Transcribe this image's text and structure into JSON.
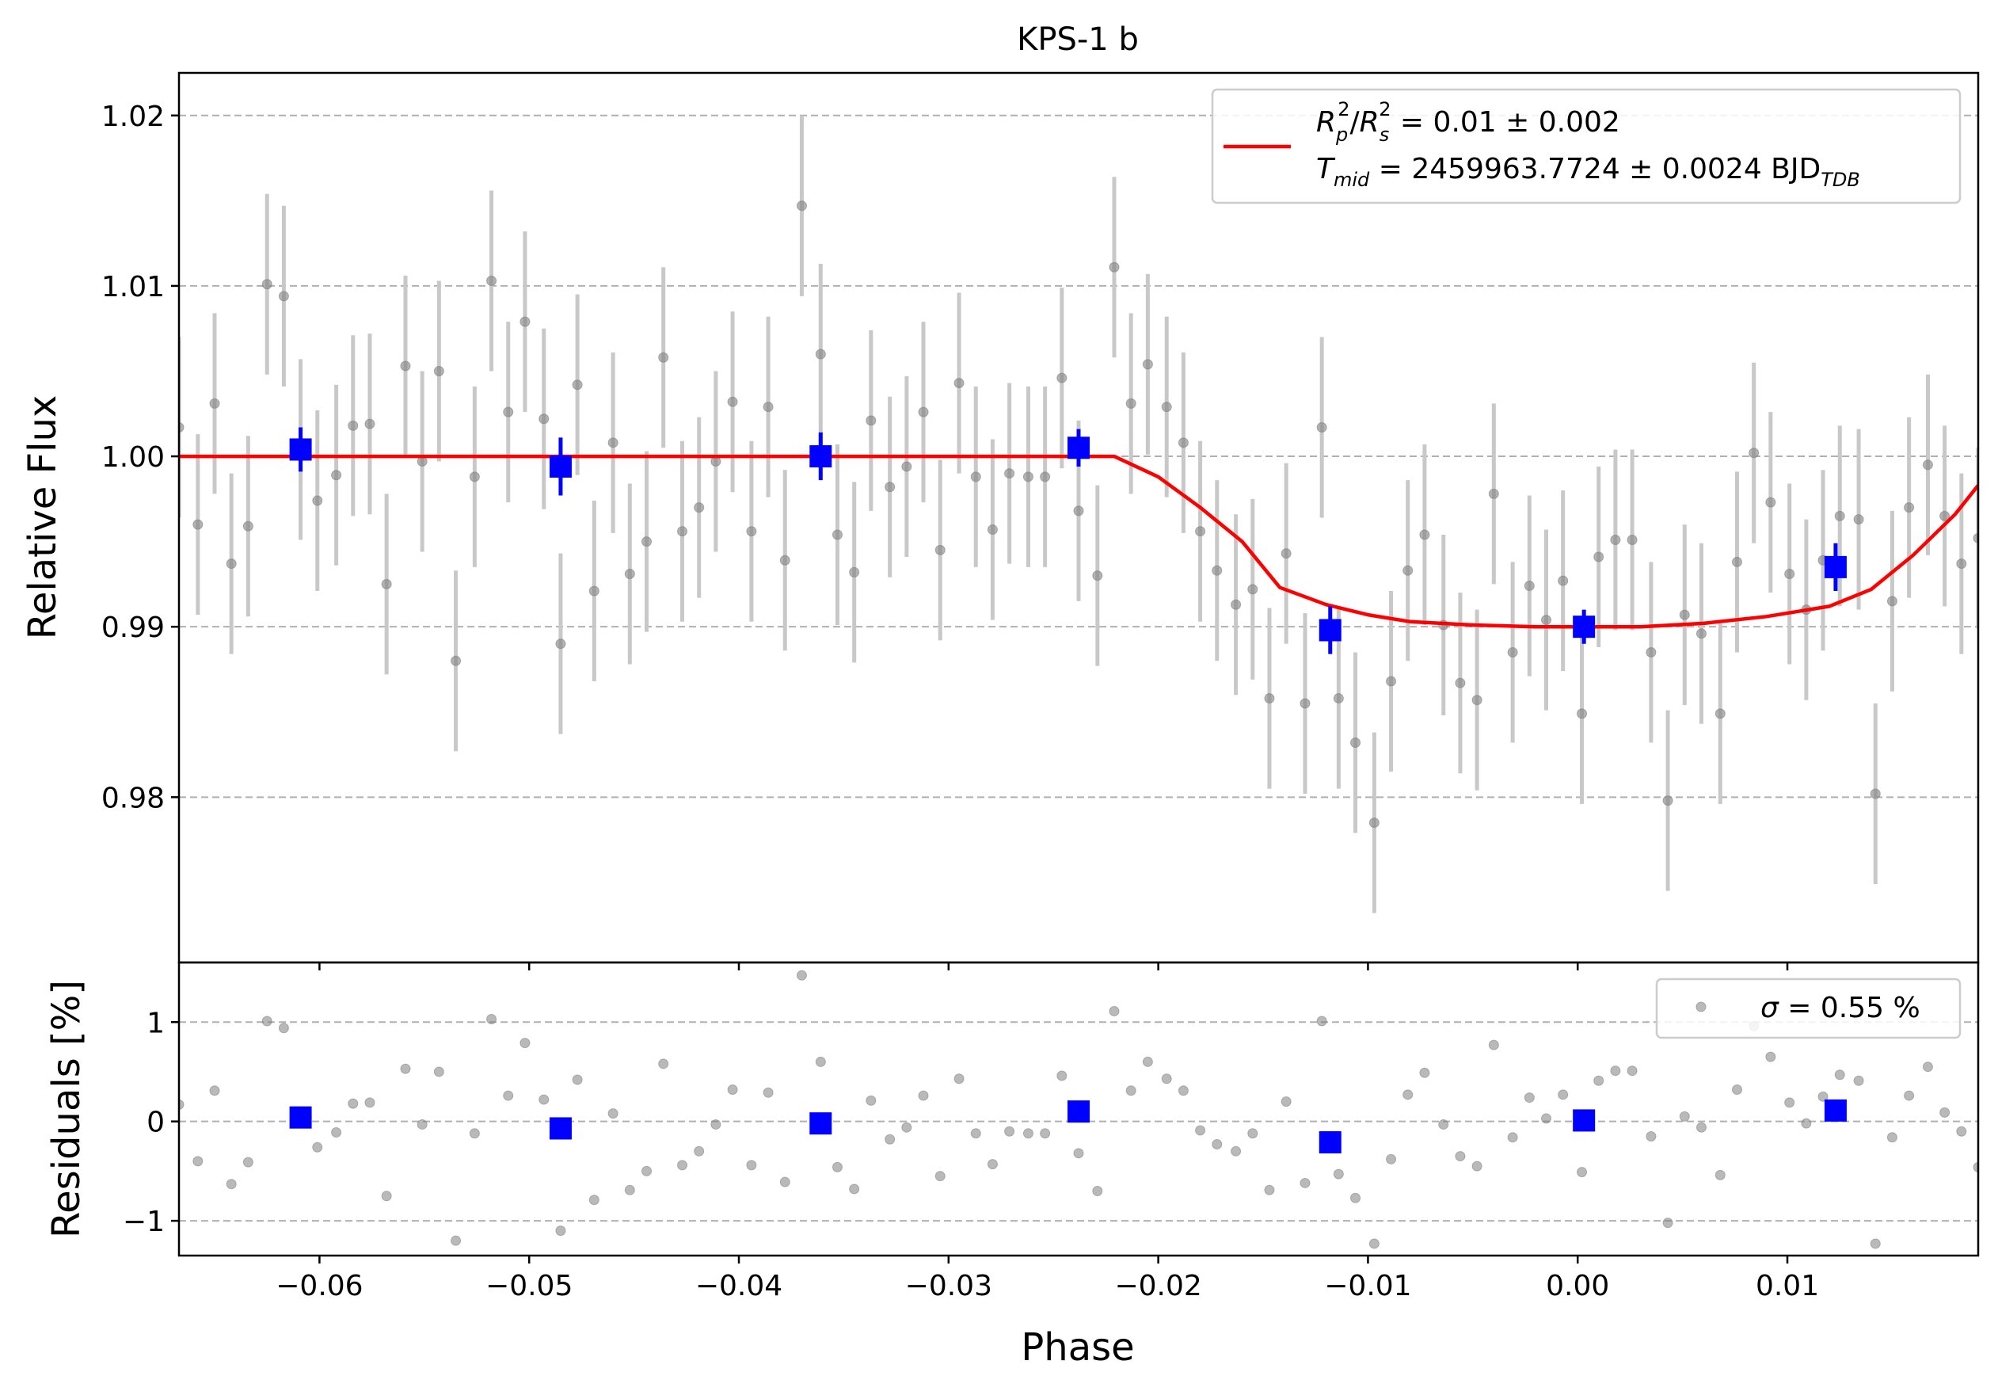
{
  "chart_data": [
    {
      "type": "scatter",
      "title": "KPS-1 b",
      "xlabel": "",
      "ylabel": "Relative Flux",
      "xlim": [
        -0.0667,
        0.0191
      ],
      "ylim": [
        0.9703,
        1.0225
      ],
      "x_ticks": [
        {
          "value": -0.06,
          "label": "−0.06"
        },
        {
          "value": -0.05,
          "label": "−0.05"
        },
        {
          "value": -0.04,
          "label": "−0.04"
        },
        {
          "value": -0.03,
          "label": "−0.03"
        },
        {
          "value": -0.02,
          "label": "−0.02"
        },
        {
          "value": -0.01,
          "label": "−0.01"
        },
        {
          "value": 0.0,
          "label": "0.00"
        },
        {
          "value": 0.01,
          "label": "0.01"
        }
      ],
      "y_ticks": [
        {
          "value": 0.98,
          "label": "0.98"
        },
        {
          "value": 0.99,
          "label": "0.99"
        },
        {
          "value": 1.0,
          "label": "1.00"
        },
        {
          "value": 1.01,
          "label": "1.01"
        },
        {
          "value": 1.02,
          "label": "1.02"
        }
      ],
      "grid": "horizontal dashed",
      "legend_position": "top-right",
      "legend": {
        "line1": {
          "base1": "R",
          "sub1": "p",
          "sup1": "2",
          "slash": "/",
          "base2": "R",
          "sub2": "s",
          "sup2": "2",
          "rest": " = 0.01 ± 0.002"
        },
        "line2": {
          "base": "T",
          "sub": "mid",
          "rest": " = 2459963.7724 ± 0.0024 BJD",
          "unit_sub": "TDB"
        }
      },
      "colors": {
        "raw": "#808080",
        "raw_err": "#c8c8c8",
        "binned": "#0000ff",
        "model": "#ff0000",
        "grid": "#b0b0b0"
      },
      "raw_x": [
        -0.0667,
        -0.0658,
        -0.065,
        -0.0642,
        -0.0634,
        -0.0625,
        -0.0617,
        -0.0609,
        -0.0601,
        -0.0592,
        -0.0584,
        -0.0576,
        -0.0568,
        -0.0559,
        -0.0551,
        -0.0543,
        -0.0535,
        -0.0526,
        -0.0518,
        -0.051,
        -0.0502,
        -0.0493,
        -0.0485,
        -0.0477,
        -0.0469,
        -0.046,
        -0.0452,
        -0.0444,
        -0.0436,
        -0.0427,
        -0.0419,
        -0.0411,
        -0.0403,
        -0.0394,
        -0.0386,
        -0.0378,
        -0.037,
        -0.0361,
        -0.0353,
        -0.0345,
        -0.0337,
        -0.0328,
        -0.032,
        -0.0312,
        -0.0304,
        -0.0295,
        -0.0287,
        -0.0279,
        -0.0271,
        -0.0262,
        -0.0254,
        -0.0246,
        -0.0238,
        -0.0229,
        -0.0221,
        -0.0213,
        -0.0205,
        -0.0196,
        -0.0188,
        -0.018,
        -0.0172,
        -0.0163,
        -0.0155,
        -0.0147,
        -0.0139,
        -0.013,
        -0.0122,
        -0.0114,
        -0.0106,
        -0.0097,
        -0.0089,
        -0.0081,
        -0.0073,
        -0.0064,
        -0.0056,
        -0.0048,
        -0.004,
        -0.0031,
        -0.0023,
        -0.0015,
        -0.0007,
        0.0002,
        0.001,
        0.0018,
        0.0026,
        0.0035,
        0.0043,
        0.0051,
        0.0059,
        0.0068,
        0.0076,
        0.0084,
        0.0092,
        0.0101,
        0.0109,
        0.0117,
        0.0125,
        0.0134,
        0.0142,
        0.015,
        0.0158,
        0.0167,
        0.0175,
        0.0183,
        0.0191
      ],
      "raw_y": [
        1.0017,
        0.996,
        1.0031,
        0.9937,
        0.9959,
        1.0101,
        1.0094,
        1.0004,
        0.9974,
        0.9989,
        1.0018,
        1.0019,
        0.9925,
        1.0053,
        0.9997,
        1.005,
        0.988,
        0.9988,
        1.0103,
        1.0026,
        1.0079,
        1.0022,
        0.989,
        1.0042,
        0.9921,
        1.0008,
        0.9931,
        0.995,
        1.0058,
        0.9956,
        0.997,
        0.9997,
        1.0032,
        0.9956,
        1.0029,
        0.9939,
        1.0147,
        1.006,
        0.9954,
        0.9932,
        1.0021,
        0.9982,
        0.9994,
        1.0026,
        0.9945,
        1.0043,
        0.9988,
        0.9957,
        0.999,
        0.9988,
        0.9988,
        1.0046,
        0.9968,
        0.993,
        1.0111,
        1.0031,
        1.0054,
        1.0029,
        1.0008,
        0.9956,
        0.9933,
        0.9913,
        0.9922,
        0.9858,
        0.9943,
        0.9855,
        1.0017,
        0.9858,
        0.9832,
        0.9785,
        0.9868,
        0.9933,
        0.9954,
        0.9901,
        0.9867,
        0.9857,
        0.9978,
        0.9885,
        0.9924,
        0.9904,
        0.9927,
        0.9849,
        0.9941,
        0.9951,
        0.9951,
        0.9885,
        0.9798,
        0.9907,
        0.9896,
        0.9849,
        0.9938,
        1.0002,
        0.9973,
        0.9931,
        0.991,
        0.9939,
        0.9965,
        0.9963,
        0.9802,
        0.9915,
        0.997,
        0.9995,
        0.9965,
        0.9937,
        0.9952
      ],
      "raw_err": 0.0053,
      "binned": [
        {
          "x": -0.0609,
          "y": 1.0004,
          "err": 0.0013
        },
        {
          "x": -0.0485,
          "y": 0.9994,
          "err": 0.0017
        },
        {
          "x": -0.0361,
          "y": 1.0,
          "err": 0.0014
        },
        {
          "x": -0.0238,
          "y": 1.0005,
          "err": 0.0011
        },
        {
          "x": -0.0118,
          "y": 0.9898,
          "err": 0.0014
        },
        {
          "x": 0.0003,
          "y": 0.99,
          "err": 0.001
        },
        {
          "x": 0.0123,
          "y": 0.9935,
          "err": 0.0014
        }
      ],
      "model": {
        "x": [
          -0.0667,
          -0.0221,
          -0.02,
          -0.018,
          -0.016,
          -0.0142,
          -0.012,
          -0.01,
          -0.008,
          -0.005,
          -0.002,
          0.0,
          0.003,
          0.006,
          0.009,
          0.012,
          0.014,
          0.016,
          0.018,
          0.0191
        ],
        "y": [
          1.0,
          1.0,
          0.9988,
          0.997,
          0.995,
          0.9923,
          0.9913,
          0.9907,
          0.9903,
          0.9901,
          0.99,
          0.99,
          0.99,
          0.9902,
          0.9906,
          0.9912,
          0.9922,
          0.9942,
          0.9966,
          0.9983
        ]
      }
    },
    {
      "type": "scatter",
      "title": "",
      "xlabel": "Phase",
      "ylabel": "Residuals [%]",
      "xlim": [
        -0.0667,
        0.0191
      ],
      "ylim": [
        -1.35,
        1.6
      ],
      "y_ticks": [
        {
          "value": -1,
          "label": "−1"
        },
        {
          "value": 0,
          "label": "0"
        },
        {
          "value": 1,
          "label": "1"
        }
      ],
      "grid": "horizontal dashed",
      "legend_position": "top-right",
      "legend": {
        "sigma": "σ",
        "rest": " = 0.55 %"
      },
      "raw_y": [
        0.17,
        -0.4,
        0.31,
        -0.63,
        -0.41,
        1.01,
        0.94,
        0.04,
        -0.26,
        -0.11,
        0.18,
        0.19,
        -0.75,
        0.53,
        -0.03,
        0.5,
        -1.2,
        -0.12,
        1.03,
        0.26,
        0.79,
        0.22,
        -1.1,
        0.42,
        -0.79,
        0.08,
        -0.69,
        -0.5,
        0.58,
        -0.44,
        -0.3,
        -0.03,
        0.32,
        -0.44,
        0.29,
        -0.61,
        1.47,
        0.6,
        -0.46,
        -0.68,
        0.21,
        -0.18,
        -0.06,
        0.26,
        -0.55,
        0.43,
        -0.12,
        -0.43,
        -0.1,
        -0.12,
        -0.12,
        0.46,
        -0.32,
        -0.7,
        1.11,
        0.31,
        0.6,
        0.43,
        0.31,
        -0.09,
        -0.23,
        -0.3,
        -0.12,
        -0.69,
        0.2,
        -0.62,
        1.01,
        -0.53,
        -0.77,
        -1.23,
        -0.38,
        0.27,
        0.49,
        -0.03,
        -0.35,
        -0.45,
        0.77,
        -0.16,
        0.24,
        0.03,
        0.27,
        -0.51,
        0.41,
        0.51,
        0.51,
        -0.15,
        -1.02,
        0.05,
        -0.06,
        -0.54,
        0.32,
        0.96,
        0.65,
        0.19,
        -0.02,
        0.25,
        0.47,
        0.41,
        -1.23,
        -0.16,
        0.26,
        0.55,
        0.09,
        -0.1,
        -0.46
      ],
      "binned": [
        {
          "x": -0.0609,
          "y": 0.04
        },
        {
          "x": -0.0485,
          "y": -0.07
        },
        {
          "x": -0.0361,
          "y": -0.02
        },
        {
          "x": -0.0238,
          "y": 0.1
        },
        {
          "x": -0.0118,
          "y": -0.21
        },
        {
          "x": 0.0003,
          "y": 0.01
        },
        {
          "x": 0.0123,
          "y": 0.11
        }
      ]
    }
  ]
}
